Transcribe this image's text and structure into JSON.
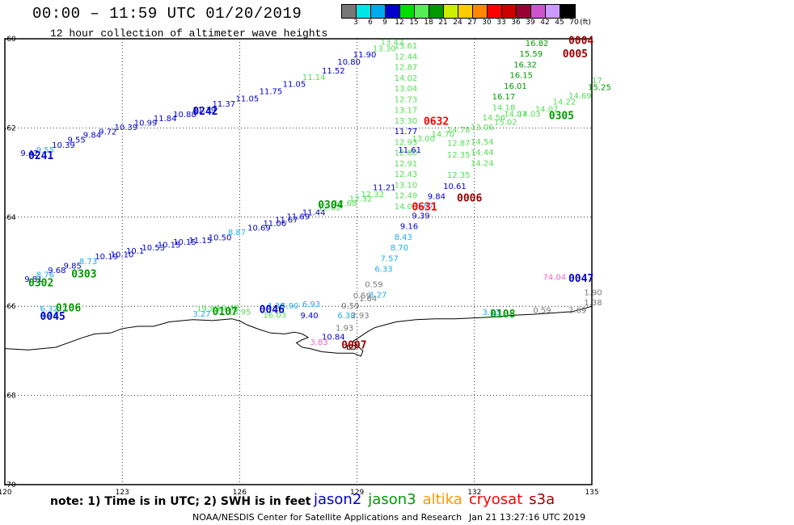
{
  "header": {
    "title": "00:00 – 11:59 UTC 01/20/2019",
    "subtitle": "12 hour collection of altimeter wave heights"
  },
  "colorbar": {
    "colors": [
      "#777777",
      "#00e5e5",
      "#00aaee",
      "#0000cc",
      "#00dd00",
      "#55ee55",
      "#009900",
      "#ccee00",
      "#ffcc00",
      "#ff8800",
      "#ff0000",
      "#cc0000",
      "#990033",
      "#cc55cc",
      "#cc99ff",
      "#000000"
    ],
    "ticks": [
      "3",
      "6",
      "9",
      "12",
      "15",
      "18",
      "21",
      "24",
      "27",
      "30",
      "33",
      "36",
      "39",
      "42",
      "45",
      "70"
    ],
    "unit": "(ft)"
  },
  "map": {
    "lon_range": [
      120,
      135
    ],
    "lat_range": [
      -70,
      -60
    ],
    "x_ticks": [
      {
        "v": 120,
        "t": "120"
      },
      {
        "v": 123,
        "t": "123"
      },
      {
        "v": 126,
        "t": "126"
      },
      {
        "v": 129,
        "t": "129"
      },
      {
        "v": 132,
        "t": "132"
      },
      {
        "v": 135,
        "t": "135"
      }
    ],
    "y_ticks": [
      {
        "v": -60,
        "t": "-60"
      },
      {
        "v": -62,
        "t": "-62"
      },
      {
        "v": -64,
        "t": "-64"
      },
      {
        "v": -66,
        "t": "-66"
      },
      {
        "v": -68,
        "t": "-68"
      },
      {
        "v": -70,
        "t": "-70"
      }
    ],
    "colors": {
      "jason2": "#0000cc",
      "jason3": "#009900",
      "jason3_light": "#55dd55",
      "cyan": "#22aaee",
      "gray": "#777777",
      "cryosat": "#ff0000",
      "darkred": "#990000",
      "pink": "#ee66cc"
    },
    "labels": [
      {
        "lon": 120.4,
        "lat": -62.63,
        "t": "9.42",
        "c": "jason2"
      },
      {
        "lon": 120.8,
        "lat": -62.55,
        "t": "9.55",
        "c": "cyan"
      },
      {
        "lon": 121.2,
        "lat": -62.45,
        "t": "10.39",
        "c": "jason2"
      },
      {
        "lon": 121.6,
        "lat": -62.33,
        "t": "9.55",
        "c": "jason2"
      },
      {
        "lon": 122.0,
        "lat": -62.22,
        "t": "9.84",
        "c": "jason2"
      },
      {
        "lon": 122.4,
        "lat": -62.15,
        "t": "9.72",
        "c": "jason2"
      },
      {
        "lon": 122.8,
        "lat": -62.05,
        "t": "10.39",
        "c": "jason2"
      },
      {
        "lon": 123.3,
        "lat": -61.95,
        "t": "10.99",
        "c": "jason2"
      },
      {
        "lon": 123.8,
        "lat": -61.85,
        "t": "11.84",
        "c": "jason2"
      },
      {
        "lon": 124.3,
        "lat": -61.76,
        "t": "10.88",
        "c": "jason2"
      },
      {
        "lon": 124.8,
        "lat": -61.66,
        "t": "11.39",
        "c": "jason2"
      },
      {
        "lon": 125.3,
        "lat": -61.52,
        "t": "11.37",
        "c": "jason2"
      },
      {
        "lon": 125.9,
        "lat": -61.4,
        "t": "11.05",
        "c": "jason2"
      },
      {
        "lon": 126.5,
        "lat": -61.24,
        "t": "11.75",
        "c": "jason2"
      },
      {
        "lon": 127.1,
        "lat": -61.08,
        "t": "11.05",
        "c": "jason2"
      },
      {
        "lon": 127.6,
        "lat": -60.92,
        "t": "11.14",
        "c": "jason3_light"
      },
      {
        "lon": 128.1,
        "lat": -60.78,
        "t": "11.52",
        "c": "jason2"
      },
      {
        "lon": 128.5,
        "lat": -60.58,
        "t": "10.80",
        "c": "jason2"
      },
      {
        "lon": 128.9,
        "lat": -60.42,
        "t": "11.90",
        "c": "jason2"
      },
      {
        "lon": 129.4,
        "lat": -60.28,
        "t": "13.30",
        "c": "jason3_light"
      },
      {
        "lon": 129.6,
        "lat": -60.14,
        "t": "13.42",
        "c": "jason3_light"
      },
      {
        "lon": 129.95,
        "lat": -60.22,
        "t": "13.61",
        "c": "jason3_light"
      },
      {
        "lon": 129.95,
        "lat": -60.46,
        "t": "12.44",
        "c": "jason3_light"
      },
      {
        "lon": 129.95,
        "lat": -60.7,
        "t": "12.87",
        "c": "jason3_light"
      },
      {
        "lon": 129.95,
        "lat": -60.94,
        "t": "14.02",
        "c": "jason3_light"
      },
      {
        "lon": 129.95,
        "lat": -61.18,
        "t": "13.04",
        "c": "jason3_light"
      },
      {
        "lon": 129.95,
        "lat": -61.42,
        "t": "12.73",
        "c": "jason3_light"
      },
      {
        "lon": 129.95,
        "lat": -61.66,
        "t": "13.17",
        "c": "jason3_light"
      },
      {
        "lon": 129.95,
        "lat": -61.9,
        "t": "13.30",
        "c": "jason3_light"
      },
      {
        "lon": 129.95,
        "lat": -62.14,
        "t": "11.77",
        "c": "jason2"
      },
      {
        "lon": 129.95,
        "lat": -62.38,
        "t": "12.93",
        "c": "jason3_light"
      },
      {
        "lon": 129.95,
        "lat": -62.62,
        "t": "12.80",
        "c": "jason3_light"
      },
      {
        "lon": 129.95,
        "lat": -62.86,
        "t": "12.91",
        "c": "jason3_light"
      },
      {
        "lon": 129.95,
        "lat": -63.1,
        "t": "12.43",
        "c": "jason3_light"
      },
      {
        "lon": 129.95,
        "lat": -63.34,
        "t": "13.10",
        "c": "jason3_light"
      },
      {
        "lon": 129.95,
        "lat": -63.58,
        "t": "12.49",
        "c": "jason3_light"
      },
      {
        "lon": 129.95,
        "lat": -63.82,
        "t": "14.06",
        "c": "jason3_light"
      },
      {
        "lon": 130.05,
        "lat": -62.55,
        "t": "11.61",
        "c": "jason2"
      },
      {
        "lon": 130.4,
        "lat": -62.3,
        "t": "13.00",
        "c": "jason3_light"
      },
      {
        "lon": 130.9,
        "lat": -62.2,
        "t": "14.70",
        "c": "jason3_light"
      },
      {
        "lon": 131.3,
        "lat": -62.1,
        "t": "14.78",
        "c": "jason3_light"
      },
      {
        "lon": 131.3,
        "lat": -62.4,
        "t": "12.87",
        "c": "jason3_light"
      },
      {
        "lon": 131.3,
        "lat": -62.66,
        "t": "12.35",
        "c": "jason3_light"
      },
      {
        "lon": 131.3,
        "lat": -63.12,
        "t": "12.35",
        "c": "jason3_light"
      },
      {
        "lon": 131.2,
        "lat": -63.37,
        "t": "10.61",
        "c": "jason2"
      },
      {
        "lon": 130.8,
        "lat": -63.6,
        "t": "9.84",
        "c": "jason2"
      },
      {
        "lon": 130.5,
        "lat": -63.8,
        "t": "8.87",
        "c": "cyan"
      },
      {
        "lon": 130.4,
        "lat": -64.03,
        "t": "9.39",
        "c": "jason2"
      },
      {
        "lon": 130.1,
        "lat": -64.27,
        "t": "9.16",
        "c": "jason2"
      },
      {
        "lon": 129.95,
        "lat": -64.51,
        "t": "8.43",
        "c": "cyan"
      },
      {
        "lon": 129.85,
        "lat": -64.75,
        "t": "8.70",
        "c": "cyan"
      },
      {
        "lon": 129.6,
        "lat": -64.99,
        "t": "7.57",
        "c": "cyan"
      },
      {
        "lon": 129.45,
        "lat": -65.23,
        "t": "6.33",
        "c": "cyan"
      },
      {
        "lon": 129.2,
        "lat": -65.57,
        "t": "0.59",
        "c": "gray"
      },
      {
        "lon": 129.3,
        "lat": -65.81,
        "t": "3.27",
        "c": "cyan"
      },
      {
        "lon": 128.9,
        "lat": -65.82,
        "t": "0.59",
        "c": "gray"
      },
      {
        "lon": 129.05,
        "lat": -65.89,
        "t": "1.64",
        "c": "gray"
      },
      {
        "lon": 128.6,
        "lat": -66.05,
        "t": "0.59",
        "c": "gray"
      },
      {
        "lon": 128.5,
        "lat": -66.27,
        "t": "6.38",
        "c": "cyan"
      },
      {
        "lon": 128.85,
        "lat": -66.27,
        "t": "2.93",
        "c": "gray"
      },
      {
        "lon": 128.45,
        "lat": -66.55,
        "t": "1.93",
        "c": "gray"
      },
      {
        "lon": 128.1,
        "lat": -66.75,
        "t": "10.84",
        "c": "jason2"
      },
      {
        "lon": 127.6,
        "lat": -66.01,
        "t": "6.93",
        "c": "cyan"
      },
      {
        "lon": 127.55,
        "lat": -66.27,
        "t": "9.40",
        "c": "jason2"
      },
      {
        "lon": 126.7,
        "lat": -66.05,
        "t": "4.30",
        "c": "cyan"
      },
      {
        "lon": 127.05,
        "lat": -66.05,
        "t": "5.90",
        "c": "cyan"
      },
      {
        "lon": 126.6,
        "lat": -66.26,
        "t": "16.03",
        "c": "jason3_light"
      },
      {
        "lon": 124.9,
        "lat": -66.11,
        "t": "19.83",
        "c": "jason3_light"
      },
      {
        "lon": 125.4,
        "lat": -66.1,
        "t": "19.45",
        "c": "jason3_light"
      },
      {
        "lon": 124.8,
        "lat": -66.23,
        "t": "3.27",
        "c": "cyan"
      },
      {
        "lon": 125.7,
        "lat": -66.19,
        "t": "13.95",
        "c": "jason3_light"
      },
      {
        "lon": 127.8,
        "lat": -66.87,
        "t": "3.83",
        "c": "pink"
      },
      {
        "lon": 120.9,
        "lat": -66.11,
        "t": "6.32",
        "c": "cyan"
      },
      {
        "lon": 120.9,
        "lat": -66.25,
        "t": "4.34",
        "c": "cyan"
      },
      {
        "lon": 120.5,
        "lat": -65.45,
        "t": "9.81",
        "c": "jason2"
      },
      {
        "lon": 120.8,
        "lat": -65.35,
        "t": "8.76",
        "c": "cyan"
      },
      {
        "lon": 121.1,
        "lat": -65.25,
        "t": "9.68",
        "c": "jason2"
      },
      {
        "lon": 121.5,
        "lat": -65.15,
        "t": "9.85",
        "c": "jason2"
      },
      {
        "lon": 121.9,
        "lat": -65.05,
        "t": "8.73",
        "c": "cyan"
      },
      {
        "lon": 122.3,
        "lat": -64.95,
        "t": "10.19",
        "c": "jason2"
      },
      {
        "lon": 122.7,
        "lat": -64.9,
        "t": "10.10",
        "c": "jason2"
      },
      {
        "lon": 123.1,
        "lat": -64.82,
        "t": "10.1",
        "c": "jason2"
      },
      {
        "lon": 123.5,
        "lat": -64.75,
        "t": "10.53",
        "c": "jason2"
      },
      {
        "lon": 123.9,
        "lat": -64.68,
        "t": "10.15",
        "c": "jason2"
      },
      {
        "lon": 124.3,
        "lat": -64.62,
        "t": "10.15",
        "c": "jason2"
      },
      {
        "lon": 124.7,
        "lat": -64.58,
        "t": "11.15",
        "c": "jason2"
      },
      {
        "lon": 125.2,
        "lat": -64.52,
        "t": "10.50",
        "c": "jason2"
      },
      {
        "lon": 125.7,
        "lat": -64.4,
        "t": "8.87",
        "c": "cyan"
      },
      {
        "lon": 126.2,
        "lat": -64.3,
        "t": "10.69",
        "c": "jason2"
      },
      {
        "lon": 126.6,
        "lat": -64.2,
        "t": "11.06",
        "c": "jason2"
      },
      {
        "lon": 126.9,
        "lat": -64.12,
        "t": "11.67",
        "c": "jason2"
      },
      {
        "lon": 127.2,
        "lat": -64.05,
        "t": "11.69",
        "c": "jason2"
      },
      {
        "lon": 127.6,
        "lat": -63.96,
        "t": "11.44",
        "c": "jason2"
      },
      {
        "lon": 128.0,
        "lat": -63.85,
        "t": "12.02",
        "c": "jason3_light"
      },
      {
        "lon": 128.4,
        "lat": -63.75,
        "t": "12.68",
        "c": "jason3_light"
      },
      {
        "lon": 128.8,
        "lat": -63.65,
        "t": "12.32",
        "c": "jason3_light"
      },
      {
        "lon": 129.1,
        "lat": -63.55,
        "t": "12.32",
        "c": "jason3_light"
      },
      {
        "lon": 129.4,
        "lat": -63.4,
        "t": "11.21",
        "c": "jason2"
      },
      {
        "lon": 131.9,
        "lat": -62.37,
        "t": "14.54",
        "c": "jason3_light"
      },
      {
        "lon": 131.9,
        "lat": -62.61,
        "t": "14.44",
        "c": "jason3_light"
      },
      {
        "lon": 131.9,
        "lat": -62.85,
        "t": "14.24",
        "c": "jason3_light"
      },
      {
        "lon": 131.9,
        "lat": -62.05,
        "t": "13.06",
        "c": "jason3_light"
      },
      {
        "lon": 132.2,
        "lat": -61.83,
        "t": "14.56",
        "c": "jason3_light"
      },
      {
        "lon": 132.45,
        "lat": -61.6,
        "t": "14.18",
        "c": "jason3_light"
      },
      {
        "lon": 132.45,
        "lat": -61.36,
        "t": "16.17",
        "c": "jason3"
      },
      {
        "lon": 132.75,
        "lat": -61.12,
        "t": "16.01",
        "c": "jason3"
      },
      {
        "lon": 132.9,
        "lat": -60.88,
        "t": "16.15",
        "c": "jason3"
      },
      {
        "lon": 133.0,
        "lat": -60.64,
        "t": "16.32",
        "c": "jason3"
      },
      {
        "lon": 133.15,
        "lat": -60.4,
        "t": "15.59",
        "c": "jason3"
      },
      {
        "lon": 133.3,
        "lat": -60.16,
        "t": "16.82",
        "c": "jason3"
      },
      {
        "lon": 132.75,
        "lat": -61.75,
        "t": "14.07",
        "c": "jason3_light"
      },
      {
        "lon": 132.5,
        "lat": -61.93,
        "t": "15.02",
        "c": "jason3_light"
      },
      {
        "lon": 133.1,
        "lat": -61.75,
        "t": "14.03",
        "c": "jason3_light"
      },
      {
        "lon": 133.55,
        "lat": -61.64,
        "t": "14.07",
        "c": "jason3_light"
      },
      {
        "lon": 134.0,
        "lat": -61.48,
        "t": "14.22",
        "c": "jason3_light"
      },
      {
        "lon": 134.4,
        "lat": -61.34,
        "t": "14.69",
        "c": "jason3_light"
      },
      {
        "lon": 134.9,
        "lat": -61.15,
        "t": "15.25",
        "c": "jason3"
      },
      {
        "lon": 135.0,
        "lat": -61.0,
        "t": "17",
        "c": "jason3_light"
      },
      {
        "lon": 133.75,
        "lat": -65.41,
        "t": "74.04",
        "c": "pink"
      },
      {
        "lon": 132.2,
        "lat": -66.2,
        "t": "3.13",
        "c": "cyan"
      },
      {
        "lon": 133.5,
        "lat": -66.15,
        "t": "0.59",
        "c": "gray"
      },
      {
        "lon": 134.4,
        "lat": -66.15,
        "t": "2.69",
        "c": "gray"
      },
      {
        "lon": 134.8,
        "lat": -65.75,
        "t": "1.90",
        "c": "gray"
      },
      {
        "lon": 134.8,
        "lat": -65.98,
        "t": "1.38",
        "c": "gray"
      }
    ],
    "passes": [
      {
        "lon": 120.6,
        "lat": -62.7,
        "t": "0241",
        "c": "jason2"
      },
      {
        "lon": 124.8,
        "lat": -61.7,
        "t": "0242",
        "c": "jason2"
      },
      {
        "lon": 120.6,
        "lat": -65.55,
        "t": "0302",
        "c": "jason3"
      },
      {
        "lon": 121.7,
        "lat": -65.35,
        "t": "0303",
        "c": "jason3"
      },
      {
        "lon": 128.0,
        "lat": -63.8,
        "t": "0304",
        "c": "jason3"
      },
      {
        "lon": 133.9,
        "lat": -61.8,
        "t": "0305",
        "c": "jason3"
      },
      {
        "lon": 121.3,
        "lat": -66.11,
        "t": "0106",
        "c": "jason3"
      },
      {
        "lon": 120.9,
        "lat": -66.3,
        "t": "0045",
        "c": "jason2"
      },
      {
        "lon": 125.3,
        "lat": -66.2,
        "t": "0107",
        "c": "jason3"
      },
      {
        "lon": 126.5,
        "lat": -66.15,
        "t": "0046",
        "c": "jason2"
      },
      {
        "lon": 132.4,
        "lat": -66.25,
        "t": "0108",
        "c": "jason3"
      },
      {
        "lon": 134.4,
        "lat": -65.45,
        "t": "0047",
        "c": "jason2"
      },
      {
        "lon": 130.7,
        "lat": -61.93,
        "t": "0632",
        "c": "cryosat"
      },
      {
        "lon": 130.4,
        "lat": -63.85,
        "t": "0631",
        "c": "cryosat"
      },
      {
        "lon": 131.55,
        "lat": -63.65,
        "t": "0006",
        "c": "darkred"
      },
      {
        "lon": 128.6,
        "lat": -66.95,
        "t": "0007",
        "c": "darkred"
      },
      {
        "lon": 134.25,
        "lat": -60.42,
        "t": "0005",
        "c": "darkred"
      },
      {
        "lon": 134.4,
        "lat": -60.12,
        "t": "0004",
        "c": "darkred"
      }
    ],
    "coastline": [
      [
        120,
        -66.95
      ],
      [
        120.6,
        -66.98
      ],
      [
        121.3,
        -66.92
      ],
      [
        122.0,
        -66.7
      ],
      [
        122.3,
        -66.62
      ],
      [
        122.7,
        -66.6
      ],
      [
        123.0,
        -66.5
      ],
      [
        123.4,
        -66.45
      ],
      [
        123.8,
        -66.45
      ],
      [
        124.2,
        -66.35
      ],
      [
        124.8,
        -66.3
      ],
      [
        125.3,
        -66.32
      ],
      [
        125.8,
        -66.28
      ],
      [
        126.0,
        -66.33
      ],
      [
        126.2,
        -66.42
      ],
      [
        126.5,
        -66.52
      ],
      [
        126.8,
        -66.6
      ],
      [
        127.15,
        -66.62
      ],
      [
        127.4,
        -66.58
      ],
      [
        127.6,
        -66.62
      ],
      [
        127.75,
        -66.7
      ],
      [
        127.6,
        -66.75
      ],
      [
        127.45,
        -66.82
      ],
      [
        127.6,
        -66.92
      ],
      [
        127.8,
        -66.95
      ],
      [
        128.1,
        -67.02
      ],
      [
        128.5,
        -67.05
      ],
      [
        128.9,
        -67.05
      ],
      [
        129.1,
        -67.12
      ],
      [
        129.15,
        -67.0
      ],
      [
        129.0,
        -66.88
      ],
      [
        128.9,
        -66.78
      ],
      [
        129.05,
        -66.7
      ],
      [
        129.25,
        -66.58
      ],
      [
        129.45,
        -66.48
      ],
      [
        129.7,
        -66.42
      ],
      [
        130.0,
        -66.35
      ],
      [
        130.5,
        -66.3
      ],
      [
        131.0,
        -66.28
      ],
      [
        131.5,
        -66.28
      ],
      [
        132.0,
        -66.26
      ],
      [
        132.5,
        -66.24
      ],
      [
        133.0,
        -66.2
      ],
      [
        133.5,
        -66.18
      ],
      [
        134.0,
        -66.15
      ],
      [
        134.5,
        -66.12
      ],
      [
        134.8,
        -66.05
      ],
      [
        135,
        -66.0
      ]
    ],
    "islet": [
      [
        128.75,
        -66.88
      ],
      [
        128.95,
        -66.88
      ],
      [
        128.95,
        -66.96
      ],
      [
        128.75,
        -66.96
      ]
    ]
  },
  "footer": {
    "note": "note: 1) Time is in UTC; 2) SWH is in feet",
    "legend": [
      {
        "t": "jason2",
        "c": "#0000cc"
      },
      {
        "t": "jason3",
        "c": "#009900"
      },
      {
        "t": "altika",
        "c": "#ff9900"
      },
      {
        "t": "cryosat",
        "c": "#ff0000"
      },
      {
        "t": "s3a",
        "c": "#990000"
      }
    ],
    "credit": "NOAA/NESDIS Center for Satellite Applications and Research",
    "stamp": "Jan 21 13:27:16 UTC 2019"
  }
}
